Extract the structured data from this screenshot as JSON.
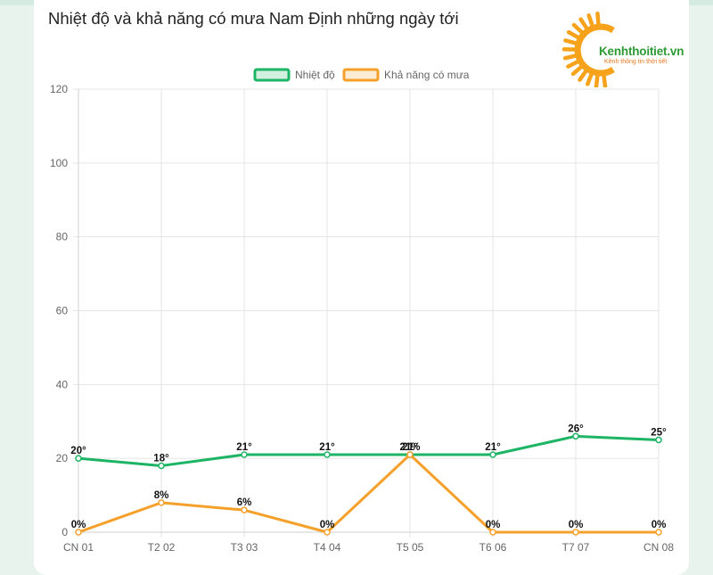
{
  "page": {
    "title": "Nhiệt độ và khả năng có mưa Nam Định những ngày tới"
  },
  "logo": {
    "brand": "Kenhthoitiet.vn",
    "tagline": "Kênh thông tin thời tiết",
    "icon": "sun-icon",
    "sun_color": "#f7a21b",
    "brand_color": "#2e9a35"
  },
  "chart_data": {
    "type": "line",
    "categories": [
      "CN 01",
      "T2 02",
      "T3 03",
      "T4 04",
      "T5 05",
      "T6 06",
      "T7 07",
      "CN 08"
    ],
    "ylim": [
      0,
      120
    ],
    "yticks": [
      0,
      20,
      40,
      60,
      80,
      100,
      120
    ],
    "grid": true,
    "legend_position": "top-center",
    "series": [
      {
        "name": "Nhiệt độ",
        "color": "#1db565",
        "values": [
          20,
          18,
          21,
          21,
          21,
          21,
          26,
          25
        ],
        "labels": [
          "20°",
          "18°",
          "21°",
          "21°",
          "21°",
          "21°",
          "26°",
          "25°"
        ]
      },
      {
        "name": "Khả năng có mưa",
        "color": "#f5a02a",
        "values": [
          0,
          8,
          6,
          0,
          21,
          0,
          0,
          0
        ],
        "labels": [
          "0%",
          "8%",
          "6%",
          "0%",
          "21%",
          "0%",
          "0%",
          "0%"
        ]
      }
    ]
  }
}
